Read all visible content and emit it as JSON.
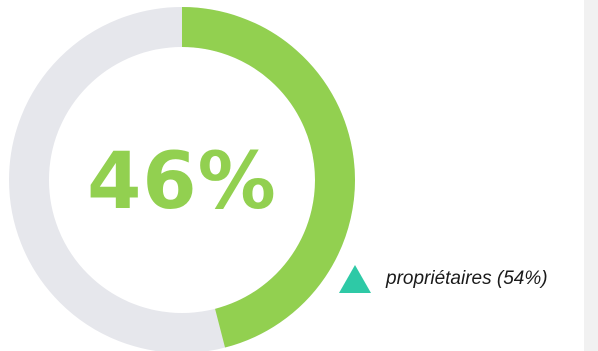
{
  "chart_data": {
    "type": "pie",
    "style": "donut",
    "center_label": "46%",
    "slices": [
      {
        "value": 46,
        "color": "#92d050"
      },
      {
        "value": 54,
        "color": "#e6e7ec"
      }
    ],
    "legend": {
      "label": "propriétaires (54%)",
      "marker_color": "#2ec9a6",
      "marker_shape": "triangle"
    }
  },
  "colors": {
    "accent": "#92d050",
    "track": "#e6e7ec",
    "marker": "#2ec9a6",
    "panel": "#f1f1f1"
  }
}
